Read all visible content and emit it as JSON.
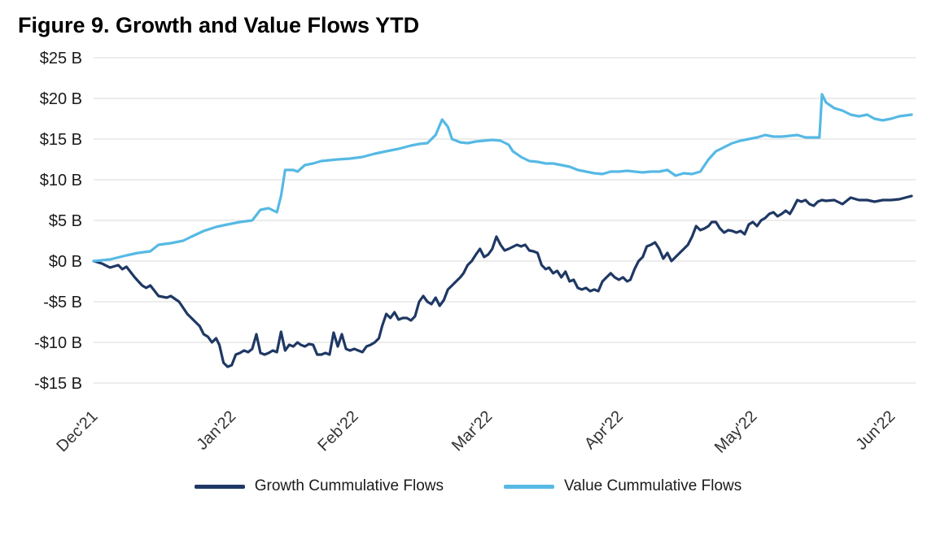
{
  "chart_data": {
    "type": "line",
    "title": "Figure 9. Growth and Value Flows YTD",
    "xlabel": "",
    "ylabel": "",
    "ylim": [
      -15,
      25
    ],
    "grid": true,
    "legend_position": "bottom",
    "grid_color": "#d9d9d9",
    "axis_label_color": "#333333",
    "x_ticks": [
      {
        "label": "Dec'21",
        "f": 0.0
      },
      {
        "label": "Jan'22",
        "f": 0.168
      },
      {
        "label": "Feb'22",
        "f": 0.317
      },
      {
        "label": "Mar'22",
        "f": 0.48
      },
      {
        "label": "Apr'22",
        "f": 0.639
      },
      {
        "label": "May'22",
        "f": 0.802
      },
      {
        "label": "Jun'22",
        "f": 0.97
      }
    ],
    "y_ticks": [
      {
        "label": "$25 B",
        "v": 25
      },
      {
        "label": "$20 B",
        "v": 20
      },
      {
        "label": "$15 B",
        "v": 15
      },
      {
        "label": "$10 B",
        "v": 10
      },
      {
        "label": "$5 B",
        "v": 5
      },
      {
        "label": "$0 B",
        "v": 0
      },
      {
        "label": "-$5 B",
        "v": -5
      },
      {
        "label": "-$10 B",
        "v": -10
      },
      {
        "label": "-$15 B",
        "v": -15
      }
    ],
    "series": [
      {
        "name": "Growth Cummulative Flows",
        "color": "#1F3864",
        "units": "billions USD",
        "points": [
          [
            0.0,
            0.0
          ],
          [
            0.01,
            -0.3
          ],
          [
            0.02,
            -0.8
          ],
          [
            0.03,
            -0.5
          ],
          [
            0.035,
            -1.0
          ],
          [
            0.04,
            -0.7
          ],
          [
            0.05,
            -2.0
          ],
          [
            0.059,
            -3.0
          ],
          [
            0.064,
            -3.3
          ],
          [
            0.069,
            -3.0
          ],
          [
            0.079,
            -4.3
          ],
          [
            0.089,
            -4.5
          ],
          [
            0.094,
            -4.3
          ],
          [
            0.104,
            -5.0
          ],
          [
            0.114,
            -6.5
          ],
          [
            0.124,
            -7.5
          ],
          [
            0.129,
            -8.0
          ],
          [
            0.134,
            -9.0
          ],
          [
            0.139,
            -9.3
          ],
          [
            0.144,
            -10.0
          ],
          [
            0.149,
            -9.5
          ],
          [
            0.153,
            -10.3
          ],
          [
            0.158,
            -12.5
          ],
          [
            0.163,
            -13.0
          ],
          [
            0.168,
            -12.8
          ],
          [
            0.173,
            -11.5
          ],
          [
            0.178,
            -11.3
          ],
          [
            0.183,
            -11.0
          ],
          [
            0.188,
            -11.2
          ],
          [
            0.193,
            -10.8
          ],
          [
            0.198,
            -9.0
          ],
          [
            0.203,
            -11.3
          ],
          [
            0.208,
            -11.5
          ],
          [
            0.213,
            -11.3
          ],
          [
            0.218,
            -11.0
          ],
          [
            0.223,
            -11.2
          ],
          [
            0.228,
            -8.7
          ],
          [
            0.233,
            -11.0
          ],
          [
            0.238,
            -10.3
          ],
          [
            0.243,
            -10.5
          ],
          [
            0.248,
            -10.0
          ],
          [
            0.252,
            -10.3
          ],
          [
            0.257,
            -10.5
          ],
          [
            0.262,
            -10.2
          ],
          [
            0.267,
            -10.3
          ],
          [
            0.272,
            -11.5
          ],
          [
            0.277,
            -11.5
          ],
          [
            0.282,
            -11.3
          ],
          [
            0.287,
            -11.5
          ],
          [
            0.292,
            -8.8
          ],
          [
            0.297,
            -10.5
          ],
          [
            0.302,
            -9.0
          ],
          [
            0.307,
            -10.8
          ],
          [
            0.312,
            -11.0
          ],
          [
            0.317,
            -10.8
          ],
          [
            0.322,
            -11.0
          ],
          [
            0.327,
            -11.2
          ],
          [
            0.332,
            -10.5
          ],
          [
            0.337,
            -10.3
          ],
          [
            0.342,
            -10.0
          ],
          [
            0.347,
            -9.5
          ],
          [
            0.351,
            -8.0
          ],
          [
            0.356,
            -6.5
          ],
          [
            0.361,
            -7.0
          ],
          [
            0.366,
            -6.3
          ],
          [
            0.371,
            -7.2
          ],
          [
            0.376,
            -7.0
          ],
          [
            0.381,
            -7.0
          ],
          [
            0.386,
            -7.3
          ],
          [
            0.391,
            -6.8
          ],
          [
            0.396,
            -5.0
          ],
          [
            0.401,
            -4.3
          ],
          [
            0.406,
            -5.0
          ],
          [
            0.411,
            -5.3
          ],
          [
            0.416,
            -4.5
          ],
          [
            0.421,
            -5.5
          ],
          [
            0.426,
            -4.8
          ],
          [
            0.431,
            -3.5
          ],
          [
            0.436,
            -3.0
          ],
          [
            0.441,
            -2.5
          ],
          [
            0.446,
            -2.0
          ],
          [
            0.45,
            -1.5
          ],
          [
            0.455,
            -0.5
          ],
          [
            0.46,
            0.0
          ],
          [
            0.465,
            0.8
          ],
          [
            0.47,
            1.5
          ],
          [
            0.475,
            0.5
          ],
          [
            0.48,
            0.8
          ],
          [
            0.485,
            1.5
          ],
          [
            0.49,
            3.0
          ],
          [
            0.495,
            2.0
          ],
          [
            0.5,
            1.3
          ],
          [
            0.505,
            1.5
          ],
          [
            0.515,
            2.0
          ],
          [
            0.52,
            1.8
          ],
          [
            0.525,
            2.0
          ],
          [
            0.53,
            1.3
          ],
          [
            0.535,
            1.2
          ],
          [
            0.54,
            1.0
          ],
          [
            0.545,
            -0.5
          ],
          [
            0.55,
            -1.0
          ],
          [
            0.554,
            -0.8
          ],
          [
            0.559,
            -1.5
          ],
          [
            0.564,
            -1.2
          ],
          [
            0.569,
            -2.0
          ],
          [
            0.574,
            -1.3
          ],
          [
            0.579,
            -2.5
          ],
          [
            0.584,
            -2.3
          ],
          [
            0.589,
            -3.3
          ],
          [
            0.594,
            -3.5
          ],
          [
            0.599,
            -3.3
          ],
          [
            0.604,
            -3.7
          ],
          [
            0.609,
            -3.5
          ],
          [
            0.614,
            -3.7
          ],
          [
            0.619,
            -2.5
          ],
          [
            0.624,
            -2.0
          ],
          [
            0.629,
            -1.5
          ],
          [
            0.634,
            -2.0
          ],
          [
            0.639,
            -2.3
          ],
          [
            0.644,
            -2.0
          ],
          [
            0.649,
            -2.5
          ],
          [
            0.653,
            -2.3
          ],
          [
            0.658,
            -1.0
          ],
          [
            0.663,
            0.0
          ],
          [
            0.668,
            0.5
          ],
          [
            0.673,
            1.8
          ],
          [
            0.678,
            2.0
          ],
          [
            0.683,
            2.3
          ],
          [
            0.688,
            1.5
          ],
          [
            0.693,
            0.3
          ],
          [
            0.698,
            1.0
          ],
          [
            0.703,
            0.0
          ],
          [
            0.708,
            0.5
          ],
          [
            0.713,
            1.0
          ],
          [
            0.718,
            1.5
          ],
          [
            0.723,
            2.0
          ],
          [
            0.728,
            3.0
          ],
          [
            0.733,
            4.3
          ],
          [
            0.738,
            3.8
          ],
          [
            0.743,
            4.0
          ],
          [
            0.748,
            4.3
          ],
          [
            0.752,
            4.8
          ],
          [
            0.757,
            4.8
          ],
          [
            0.762,
            4.0
          ],
          [
            0.767,
            3.5
          ],
          [
            0.772,
            3.8
          ],
          [
            0.777,
            3.7
          ],
          [
            0.782,
            3.5
          ],
          [
            0.787,
            3.7
          ],
          [
            0.792,
            3.3
          ],
          [
            0.797,
            4.5
          ],
          [
            0.802,
            4.8
          ],
          [
            0.807,
            4.3
          ],
          [
            0.812,
            5.0
          ],
          [
            0.817,
            5.3
          ],
          [
            0.822,
            5.8
          ],
          [
            0.827,
            6.0
          ],
          [
            0.832,
            5.5
          ],
          [
            0.837,
            5.8
          ],
          [
            0.842,
            6.2
          ],
          [
            0.847,
            5.8
          ],
          [
            0.851,
            6.5
          ],
          [
            0.856,
            7.5
          ],
          [
            0.861,
            7.3
          ],
          [
            0.866,
            7.5
          ],
          [
            0.871,
            7.0
          ],
          [
            0.876,
            6.8
          ],
          [
            0.881,
            7.3
          ],
          [
            0.886,
            7.5
          ],
          [
            0.891,
            7.4
          ],
          [
            0.901,
            7.5
          ],
          [
            0.911,
            7.0
          ],
          [
            0.921,
            7.8
          ],
          [
            0.931,
            7.5
          ],
          [
            0.941,
            7.5
          ],
          [
            0.95,
            7.3
          ],
          [
            0.96,
            7.5
          ],
          [
            0.97,
            7.5
          ],
          [
            0.98,
            7.6
          ],
          [
            0.995,
            8.0
          ]
        ]
      },
      {
        "name": "Value Cummulative Flows",
        "color": "#56B9E4",
        "units": "billions USD",
        "points": [
          [
            0.0,
            0.0
          ],
          [
            0.02,
            0.2
          ],
          [
            0.04,
            0.7
          ],
          [
            0.054,
            1.0
          ],
          [
            0.069,
            1.2
          ],
          [
            0.079,
            2.0
          ],
          [
            0.094,
            2.2
          ],
          [
            0.109,
            2.5
          ],
          [
            0.119,
            3.0
          ],
          [
            0.134,
            3.7
          ],
          [
            0.149,
            4.2
          ],
          [
            0.163,
            4.5
          ],
          [
            0.178,
            4.8
          ],
          [
            0.193,
            5.0
          ],
          [
            0.203,
            6.3
          ],
          [
            0.213,
            6.5
          ],
          [
            0.223,
            6.0
          ],
          [
            0.228,
            8.0
          ],
          [
            0.233,
            11.2
          ],
          [
            0.243,
            11.2
          ],
          [
            0.248,
            11.0
          ],
          [
            0.257,
            11.8
          ],
          [
            0.267,
            12.0
          ],
          [
            0.277,
            12.3
          ],
          [
            0.287,
            12.4
          ],
          [
            0.297,
            12.5
          ],
          [
            0.312,
            12.6
          ],
          [
            0.327,
            12.8
          ],
          [
            0.342,
            13.2
          ],
          [
            0.356,
            13.5
          ],
          [
            0.371,
            13.8
          ],
          [
            0.386,
            14.2
          ],
          [
            0.396,
            14.4
          ],
          [
            0.406,
            14.5
          ],
          [
            0.416,
            15.5
          ],
          [
            0.424,
            17.4
          ],
          [
            0.431,
            16.5
          ],
          [
            0.436,
            15.0
          ],
          [
            0.446,
            14.6
          ],
          [
            0.455,
            14.5
          ],
          [
            0.465,
            14.7
          ],
          [
            0.475,
            14.8
          ],
          [
            0.485,
            14.9
          ],
          [
            0.495,
            14.8
          ],
          [
            0.505,
            14.3
          ],
          [
            0.51,
            13.5
          ],
          [
            0.52,
            12.8
          ],
          [
            0.53,
            12.3
          ],
          [
            0.54,
            12.2
          ],
          [
            0.55,
            12.0
          ],
          [
            0.559,
            12.0
          ],
          [
            0.569,
            11.8
          ],
          [
            0.579,
            11.6
          ],
          [
            0.589,
            11.2
          ],
          [
            0.599,
            11.0
          ],
          [
            0.609,
            10.8
          ],
          [
            0.619,
            10.7
          ],
          [
            0.629,
            11.0
          ],
          [
            0.639,
            11.0
          ],
          [
            0.649,
            11.1
          ],
          [
            0.658,
            11.0
          ],
          [
            0.668,
            10.9
          ],
          [
            0.678,
            11.0
          ],
          [
            0.688,
            11.0
          ],
          [
            0.698,
            11.2
          ],
          [
            0.708,
            10.5
          ],
          [
            0.718,
            10.8
          ],
          [
            0.728,
            10.7
          ],
          [
            0.738,
            11.0
          ],
          [
            0.748,
            12.5
          ],
          [
            0.757,
            13.5
          ],
          [
            0.767,
            14.0
          ],
          [
            0.777,
            14.5
          ],
          [
            0.787,
            14.8
          ],
          [
            0.797,
            15.0
          ],
          [
            0.807,
            15.2
          ],
          [
            0.817,
            15.5
          ],
          [
            0.827,
            15.3
          ],
          [
            0.837,
            15.3
          ],
          [
            0.847,
            15.4
          ],
          [
            0.856,
            15.5
          ],
          [
            0.866,
            15.2
          ],
          [
            0.876,
            15.2
          ],
          [
            0.883,
            15.2
          ],
          [
            0.886,
            20.5
          ],
          [
            0.891,
            19.5
          ],
          [
            0.901,
            18.8
          ],
          [
            0.911,
            18.5
          ],
          [
            0.921,
            18.0
          ],
          [
            0.931,
            17.8
          ],
          [
            0.941,
            18.0
          ],
          [
            0.95,
            17.5
          ],
          [
            0.96,
            17.3
          ],
          [
            0.97,
            17.5
          ],
          [
            0.98,
            17.8
          ],
          [
            0.995,
            18.0
          ]
        ]
      }
    ]
  },
  "legend": {
    "growth_label": "Growth Cummulative Flows",
    "value_label": "Value Cummulative Flows"
  },
  "colors": {
    "growth": "#1F3864",
    "value": "#56B9E4",
    "grid": "#d9d9d9"
  }
}
